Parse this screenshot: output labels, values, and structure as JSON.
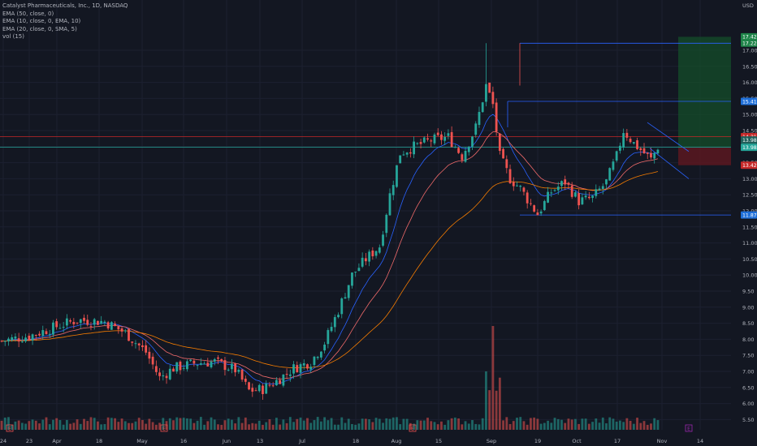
{
  "header": {
    "title": "Catalyst Pharmaceuticals, Inc., 1D, NASDAQ",
    "indicators": [
      "EMA (50, close, 0)",
      "EMA (10, close, 0, EMA, 10)",
      "EMA (20, close, 0, SMA, 5)",
      "vol (15)"
    ]
  },
  "colors": {
    "background": "#131722",
    "grid": "#1c2030",
    "up": "#26a69a",
    "down": "#ef5350",
    "ema_fast": "#2962ff",
    "ema_mid": "#f06a6a",
    "ema_slow": "#f57c00",
    "level_blue": "#2962ff",
    "level_red": "#c62828",
    "level_teal": "#26a69a",
    "target_zone": "#144d2a",
    "stop_zone": "#5a1820",
    "axis_text": "#b2b5be"
  },
  "chart_data": {
    "type": "candlestick",
    "currency": "USD",
    "y_axis_ticks": [
      "17.00",
      "16.50",
      "16.00",
      "15.50",
      "15.00",
      "14.50",
      "14.00",
      "13.50",
      "13.00",
      "12.50",
      "12.00",
      "11.50",
      "11.00",
      "10.50",
      "10.00",
      "9.50",
      "9.00",
      "8.50",
      "8.00",
      "7.50",
      "7.00",
      "6.50",
      "6.00",
      "5.50"
    ],
    "ylim": [
      5.2,
      18.0
    ],
    "x_axis_ticks": [
      "24",
      "23",
      "Apr",
      "18",
      "May",
      "16",
      "Jun",
      "13",
      "Jul",
      "18",
      "Aug",
      "15",
      "Sep",
      "19",
      "Oct",
      "17",
      "Nov",
      "14"
    ],
    "price_badges": [
      {
        "label": "17.42",
        "kind": "target"
      },
      {
        "label": "17.22",
        "kind": "target"
      },
      {
        "label": "15.41",
        "kind": "level"
      },
      {
        "label": "14.31",
        "kind": "resistance"
      },
      {
        "label": "13.98",
        "kind": "last"
      },
      {
        "label": "13.98",
        "kind": "last2"
      },
      {
        "label": "13.42",
        "kind": "stop"
      },
      {
        "label": "11.87",
        "kind": "level"
      }
    ],
    "horizontal_levels": [
      {
        "price": 17.22,
        "kind": "target"
      },
      {
        "price": 15.41,
        "kind": "level"
      },
      {
        "price": 14.31,
        "kind": "resistance"
      },
      {
        "price": 13.98,
        "kind": "last"
      },
      {
        "price": 11.87,
        "kind": "support"
      }
    ],
    "position": {
      "entry": 13.98,
      "target": 17.42,
      "stop": 13.42
    },
    "events": [
      "E",
      "E",
      "E",
      "E"
    ],
    "price_path": [
      {
        "bar": 0,
        "price": 7.95
      },
      {
        "bar": 8,
        "price": 8.1
      },
      {
        "bar": 16,
        "price": 8.4
      },
      {
        "bar": 22,
        "price": 8.6
      },
      {
        "bar": 30,
        "price": 8.55
      },
      {
        "bar": 36,
        "price": 8.2
      },
      {
        "bar": 42,
        "price": 7.6
      },
      {
        "bar": 46,
        "price": 6.8
      },
      {
        "bar": 50,
        "price": 7.1
      },
      {
        "bar": 56,
        "price": 7.25
      },
      {
        "bar": 62,
        "price": 7.3
      },
      {
        "bar": 68,
        "price": 7.05
      },
      {
        "bar": 72,
        "price": 6.4
      },
      {
        "bar": 76,
        "price": 6.45
      },
      {
        "bar": 80,
        "price": 6.7
      },
      {
        "bar": 85,
        "price": 7.1
      },
      {
        "bar": 90,
        "price": 7.3
      },
      {
        "bar": 94,
        "price": 7.9
      },
      {
        "bar": 98,
        "price": 8.9
      },
      {
        "bar": 102,
        "price": 10.0
      },
      {
        "bar": 106,
        "price": 10.5
      },
      {
        "bar": 110,
        "price": 10.9
      },
      {
        "bar": 113,
        "price": 12.5
      },
      {
        "bar": 116,
        "price": 13.8
      },
      {
        "bar": 120,
        "price": 14.0
      },
      {
        "bar": 125,
        "price": 14.2
      },
      {
        "bar": 130,
        "price": 14.3
      },
      {
        "bar": 134,
        "price": 13.7
      },
      {
        "bar": 138,
        "price": 14.6
      },
      {
        "bar": 141,
        "price": 15.9
      },
      {
        "bar": 143,
        "price": 15.3
      },
      {
        "bar": 145,
        "price": 13.7
      },
      {
        "bar": 148,
        "price": 13.0
      },
      {
        "bar": 151,
        "price": 12.7
      },
      {
        "bar": 154,
        "price": 12.2
      },
      {
        "bar": 156,
        "price": 11.9
      },
      {
        "bar": 160,
        "price": 12.6
      },
      {
        "bar": 164,
        "price": 12.9
      },
      {
        "bar": 168,
        "price": 12.3
      },
      {
        "bar": 172,
        "price": 12.4
      },
      {
        "bar": 176,
        "price": 12.9
      },
      {
        "bar": 179,
        "price": 13.7
      },
      {
        "bar": 181,
        "price": 14.5
      },
      {
        "bar": 184,
        "price": 14.1
      },
      {
        "bar": 187,
        "price": 13.8
      },
      {
        "bar": 189,
        "price": 13.6
      },
      {
        "bar": 191,
        "price": 14.0
      }
    ]
  }
}
